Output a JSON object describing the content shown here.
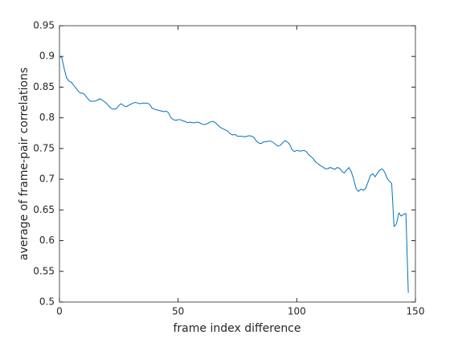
{
  "chart_data": {
    "type": "line",
    "xlabel": "frame index difference",
    "ylabel": "average of frame-pair correlations",
    "x": [
      0,
      1,
      2,
      3,
      4,
      5,
      6,
      7,
      8,
      9,
      10,
      11,
      12,
      13,
      14,
      15,
      16,
      17,
      18,
      19,
      20,
      21,
      22,
      23,
      24,
      25,
      26,
      27,
      28,
      29,
      30,
      31,
      32,
      33,
      34,
      35,
      36,
      37,
      38,
      39,
      40,
      41,
      42,
      43,
      44,
      45,
      46,
      47,
      48,
      49,
      50,
      51,
      52,
      53,
      54,
      55,
      56,
      57,
      58,
      59,
      60,
      61,
      62,
      63,
      64,
      65,
      66,
      67,
      68,
      69,
      70,
      71,
      72,
      73,
      74,
      75,
      76,
      77,
      78,
      79,
      80,
      81,
      82,
      83,
      84,
      85,
      86,
      87,
      88,
      89,
      90,
      91,
      92,
      93,
      94,
      95,
      96,
      97,
      98,
      99,
      100,
      101,
      102,
      103,
      104,
      105,
      106,
      107,
      108,
      109,
      110,
      111,
      112,
      113,
      114,
      115,
      116,
      117,
      118,
      119,
      120,
      121,
      122,
      123,
      124,
      125,
      126,
      127,
      128,
      129,
      130,
      131,
      132,
      133,
      134,
      135,
      136,
      137,
      138,
      139,
      140,
      141,
      142,
      143,
      144,
      145,
      146,
      147
    ],
    "series": [
      {
        "color": "#0072bd",
        "values": [
          0.9,
          0.898,
          0.88,
          0.865,
          0.86,
          0.858,
          0.853,
          0.848,
          0.843,
          0.84,
          0.84,
          0.836,
          0.831,
          0.827,
          0.827,
          0.827,
          0.829,
          0.831,
          0.829,
          0.826,
          0.823,
          0.818,
          0.815,
          0.814,
          0.815,
          0.82,
          0.823,
          0.82,
          0.818,
          0.82,
          0.822,
          0.824,
          0.825,
          0.824,
          0.823,
          0.824,
          0.824,
          0.824,
          0.822,
          0.816,
          0.814,
          0.813,
          0.812,
          0.811,
          0.81,
          0.811,
          0.808,
          0.8,
          0.797,
          0.796,
          0.797,
          0.797,
          0.795,
          0.794,
          0.792,
          0.793,
          0.792,
          0.792,
          0.793,
          0.792,
          0.79,
          0.789,
          0.79,
          0.792,
          0.794,
          0.794,
          0.791,
          0.787,
          0.784,
          0.782,
          0.78,
          0.778,
          0.774,
          0.772,
          0.773,
          0.77,
          0.77,
          0.77,
          0.769,
          0.77,
          0.771,
          0.77,
          0.768,
          0.762,
          0.759,
          0.758,
          0.761,
          0.761,
          0.762,
          0.762,
          0.76,
          0.757,
          0.754,
          0.755,
          0.759,
          0.763,
          0.761,
          0.757,
          0.748,
          0.745,
          0.747,
          0.746,
          0.746,
          0.747,
          0.745,
          0.74,
          0.737,
          0.733,
          0.728,
          0.725,
          0.722,
          0.72,
          0.717,
          0.717,
          0.719,
          0.718,
          0.716,
          0.719,
          0.718,
          0.713,
          0.71,
          0.715,
          0.719,
          0.712,
          0.7,
          0.685,
          0.68,
          0.684,
          0.682,
          0.685,
          0.695,
          0.706,
          0.709,
          0.704,
          0.71,
          0.715,
          0.717,
          0.712,
          0.702,
          0.697,
          0.693,
          0.623,
          0.627,
          0.645,
          0.64,
          0.643,
          0.644,
          0.515
        ]
      }
    ],
    "xlim": [
      0,
      150
    ],
    "xticks": [
      0,
      50,
      100,
      150
    ],
    "ylim": [
      0.5,
      0.95
    ],
    "yticks": [
      0.5,
      0.55,
      0.6,
      0.65,
      0.7,
      0.75,
      0.8,
      0.85,
      0.9,
      0.95
    ],
    "grid": false
  }
}
